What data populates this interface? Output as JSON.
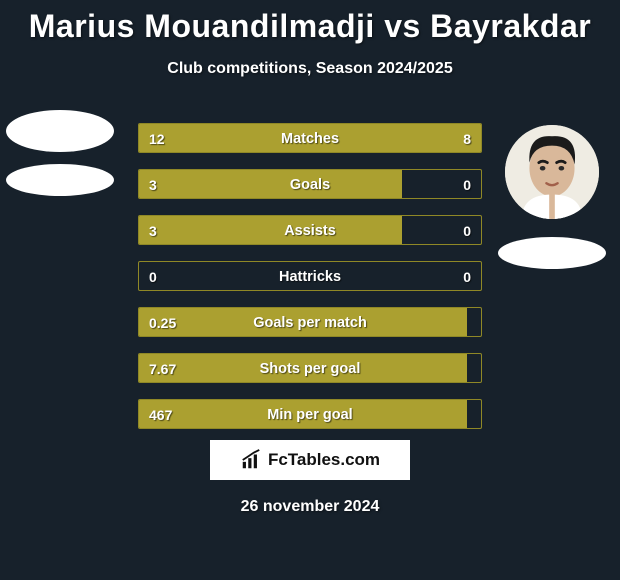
{
  "type": "comparison-infographic",
  "background_color": "#17212b",
  "text_color": "#ffffff",
  "bar_fill_color": "#aba030",
  "bar_empty_color": "#17212b",
  "bar_border_color": "#8f8826",
  "title": "Marius Mouandilmadji vs Bayrakdar",
  "title_fontsize": 32,
  "subtitle": "Club competitions, Season 2024/2025",
  "subtitle_fontsize": 16,
  "player_left": {
    "name": "Marius Mouandilmadji"
  },
  "player_right": {
    "name": "Bayrakdar"
  },
  "stats": [
    {
      "label": "Matches",
      "left_val": "12",
      "right_val": "8",
      "left_pct": 60,
      "right_pct": 40
    },
    {
      "label": "Goals",
      "left_val": "3",
      "right_val": "0",
      "left_pct": 77,
      "right_pct": 0
    },
    {
      "label": "Assists",
      "left_val": "3",
      "right_val": "0",
      "left_pct": 77,
      "right_pct": 0
    },
    {
      "label": "Hattricks",
      "left_val": "0",
      "right_val": "0",
      "left_pct": 0,
      "right_pct": 0
    },
    {
      "label": "Goals per match",
      "left_val": "0.25",
      "right_val": "",
      "left_pct": 96,
      "right_pct": 0
    },
    {
      "label": "Shots per goal",
      "left_val": "7.67",
      "right_val": "",
      "left_pct": 96,
      "right_pct": 0
    },
    {
      "label": "Min per goal",
      "left_val": "467",
      "right_val": "",
      "left_pct": 96,
      "right_pct": 0
    }
  ],
  "logo_text": "FcTables.com",
  "date": "26 november 2024"
}
